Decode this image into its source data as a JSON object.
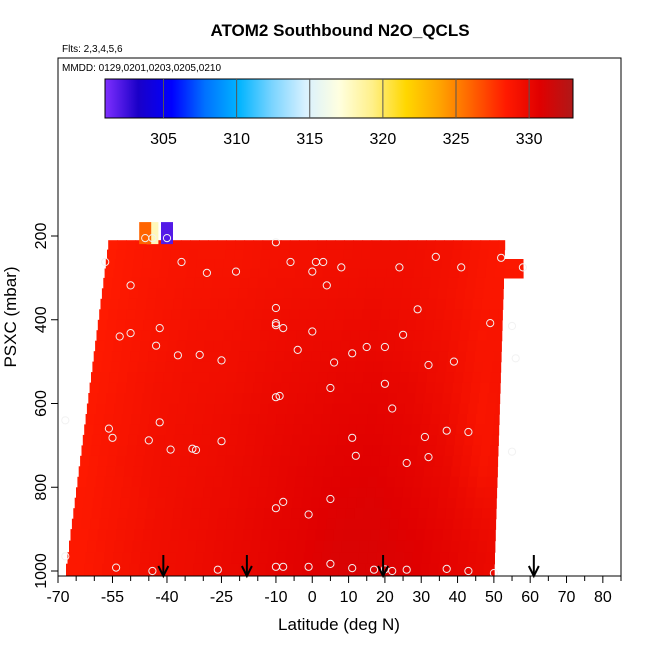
{
  "chart_data": {
    "type": "heatmap",
    "title": "ATOM2 Southbound N2O_QCLS",
    "subtitle_flights": "Flts: 2,3,4,5,6",
    "subtitle_dates": "MMDD: 0129,0201,0203,0205,0210",
    "xlabel": "Latitude (deg N)",
    "ylabel": "PSXC (mbar)",
    "xlim": [
      -70,
      85
    ],
    "ylim": [
      1000,
      0
    ],
    "x_ticks": [
      -70,
      -55,
      -40,
      -25,
      -10,
      0,
      10,
      20,
      30,
      40,
      50,
      60,
      70,
      80
    ],
    "x_tick_labels": [
      "-70",
      "-55",
      "-40",
      "-25",
      "-10",
      "0",
      "10",
      "20",
      "30",
      "40",
      "50",
      "60",
      "70",
      "80"
    ],
    "x_minor_ticks": [
      -65,
      -60,
      -50,
      -45,
      -35,
      -30,
      -20,
      -15,
      -5,
      5,
      15,
      25,
      35,
      45,
      55,
      65,
      75,
      85
    ],
    "y_ticks": [
      200,
      400,
      600,
      800,
      1000
    ],
    "y_tick_labels": [
      "200",
      "400",
      "600",
      "800",
      "1000"
    ],
    "colorbar": {
      "range": [
        301,
        333
      ],
      "ticks": [
        305,
        310,
        315,
        320,
        325,
        330
      ],
      "tick_labels": [
        "305",
        "310",
        "315",
        "320",
        "325",
        "330"
      ],
      "colors": [
        "#7f2fff",
        "#1a00c8",
        "#0000ff",
        "#0072ff",
        "#00b4ff",
        "#7ad4ff",
        "#d9f1ff",
        "#ffffe0",
        "#fff08a",
        "#ffd700",
        "#ffa500",
        "#ff6000",
        "#ff1a00",
        "#e00000",
        "#b01818"
      ]
    },
    "field": {
      "lat_edges": [
        -68,
        -58,
        -48,
        -38,
        -28,
        -18,
        -8,
        2,
        12,
        22,
        32,
        42,
        52,
        58
      ],
      "p_edges": [
        210,
        300,
        400,
        500,
        600,
        700,
        800,
        900,
        1010
      ],
      "values": [
        [
          328.0,
          328.5,
          328.8,
          329.0,
          329.0,
          329.2,
          329.3,
          329.4,
          329.5,
          329.5,
          329.3,
          328.9,
          328.6
        ],
        [
          328.2,
          328.6,
          328.9,
          329.1,
          329.2,
          329.4,
          329.5,
          329.6,
          329.7,
          329.6,
          329.3,
          328.8,
          328.8
        ],
        [
          328.3,
          328.7,
          329.0,
          329.3,
          329.4,
          329.6,
          329.8,
          329.9,
          330.0,
          329.8,
          329.5,
          328.9,
          329.0
        ],
        [
          328.4,
          328.8,
          329.2,
          329.4,
          329.5,
          329.8,
          330.0,
          330.2,
          330.3,
          330.1,
          329.6,
          328.9,
          329.2
        ],
        [
          328.5,
          328.9,
          329.3,
          329.5,
          329.7,
          330.0,
          330.2,
          330.4,
          330.5,
          330.3,
          329.8,
          328.8,
          329.3
        ],
        [
          328.5,
          329.0,
          329.4,
          329.6,
          329.8,
          330.1,
          330.4,
          330.6,
          330.7,
          330.4,
          330.0,
          329.0,
          329.4
        ],
        [
          328.6,
          329.0,
          329.4,
          329.7,
          329.9,
          330.2,
          330.5,
          330.8,
          330.9,
          330.6,
          330.2,
          329.6,
          329.4
        ],
        [
          328.6,
          329.1,
          329.5,
          329.7,
          330.0,
          330.3,
          330.6,
          331.0,
          331.0,
          330.8,
          330.4,
          330.0,
          329.5
        ]
      ]
    },
    "sample_points": [
      {
        "lat": -40,
        "p": 205,
        "value": 302
      },
      {
        "lat": -44,
        "p": 205,
        "value": 318
      },
      {
        "lat": -46,
        "p": 205,
        "value": 326
      },
      {
        "lat": -57,
        "p": 262
      },
      {
        "lat": -50,
        "p": 318
      },
      {
        "lat": -36,
        "p": 262
      },
      {
        "lat": -29,
        "p": 288
      },
      {
        "lat": -21,
        "p": 285
      },
      {
        "lat": -10,
        "p": 215
      },
      {
        "lat": -6,
        "p": 262
      },
      {
        "lat": 1,
        "p": 262
      },
      {
        "lat": 3,
        "p": 262
      },
      {
        "lat": 0,
        "p": 285
      },
      {
        "lat": 4,
        "p": 318
      },
      {
        "lat": 8,
        "p": 275
      },
      {
        "lat": 24,
        "p": 275
      },
      {
        "lat": 34,
        "p": 250
      },
      {
        "lat": 41,
        "p": 275
      },
      {
        "lat": 52,
        "p": 252
      },
      {
        "lat": 58,
        "p": 275
      },
      {
        "lat": -10,
        "p": 372
      },
      {
        "lat": -10,
        "p": 408
      },
      {
        "lat": -10,
        "p": 413
      },
      {
        "lat": -8,
        "p": 420
      },
      {
        "lat": 0,
        "p": 428
      },
      {
        "lat": -42,
        "p": 420
      },
      {
        "lat": -50,
        "p": 432
      },
      {
        "lat": -53,
        "p": 440
      },
      {
        "lat": -43,
        "p": 462
      },
      {
        "lat": -37,
        "p": 485
      },
      {
        "lat": -31,
        "p": 484
      },
      {
        "lat": -25,
        "p": 497
      },
      {
        "lat": -4,
        "p": 472
      },
      {
        "lat": 6,
        "p": 502
      },
      {
        "lat": 11,
        "p": 480
      },
      {
        "lat": 15,
        "p": 465
      },
      {
        "lat": 20,
        "p": 465
      },
      {
        "lat": 25,
        "p": 436
      },
      {
        "lat": 29,
        "p": 375
      },
      {
        "lat": 32,
        "p": 508
      },
      {
        "lat": 39,
        "p": 500
      },
      {
        "lat": 49,
        "p": 408
      },
      {
        "lat": 55,
        "p": 415
      },
      {
        "lat": 56,
        "p": 492
      },
      {
        "lat": 5,
        "p": 563
      },
      {
        "lat": 20,
        "p": 553
      },
      {
        "lat": 22,
        "p": 612
      },
      {
        "lat": -10,
        "p": 585
      },
      {
        "lat": -9,
        "p": 582
      },
      {
        "lat": -68,
        "p": 640
      },
      {
        "lat": -56,
        "p": 660
      },
      {
        "lat": -55,
        "p": 682
      },
      {
        "lat": -45,
        "p": 688
      },
      {
        "lat": -42,
        "p": 645
      },
      {
        "lat": -39,
        "p": 710
      },
      {
        "lat": -33,
        "p": 708
      },
      {
        "lat": -32,
        "p": 711
      },
      {
        "lat": -25,
        "p": 690
      },
      {
        "lat": 11,
        "p": 682
      },
      {
        "lat": 12,
        "p": 725
      },
      {
        "lat": 26,
        "p": 742
      },
      {
        "lat": 31,
        "p": 680
      },
      {
        "lat": 32,
        "p": 728
      },
      {
        "lat": 37,
        "p": 665
      },
      {
        "lat": 43,
        "p": 668
      },
      {
        "lat": 55,
        "p": 715
      },
      {
        "lat": -8,
        "p": 835
      },
      {
        "lat": -10,
        "p": 850
      },
      {
        "lat": -1,
        "p": 865
      },
      {
        "lat": 5,
        "p": 828
      },
      {
        "lat": -68,
        "p": 965
      },
      {
        "lat": -54,
        "p": 992
      },
      {
        "lat": -44,
        "p": 1000
      },
      {
        "lat": -26,
        "p": 997
      },
      {
        "lat": -10,
        "p": 990
      },
      {
        "lat": -8,
        "p": 990
      },
      {
        "lat": -1,
        "p": 990
      },
      {
        "lat": 5,
        "p": 983
      },
      {
        "lat": 11,
        "p": 993
      },
      {
        "lat": 17,
        "p": 997
      },
      {
        "lat": 20,
        "p": 996
      },
      {
        "lat": 22,
        "p": 1000
      },
      {
        "lat": 26,
        "p": 997
      },
      {
        "lat": 37,
        "p": 995
      },
      {
        "lat": 43,
        "p": 1000
      },
      {
        "lat": 50,
        "p": 1005
      }
    ],
    "flight_markers_lat": [
      -41,
      -18,
      19.5,
      61
    ]
  }
}
